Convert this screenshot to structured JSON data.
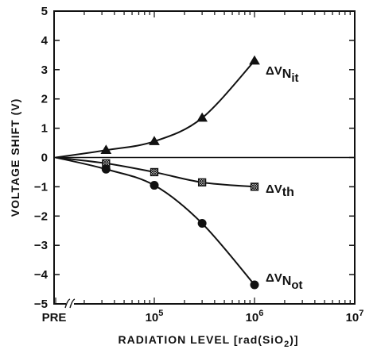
{
  "chart_data": {
    "type": "line",
    "xlabel": "RADIATION LEVEL [rad(SiO2)]",
    "ylabel": "VOLTAGE SHIFT (V)",
    "xscale": "log",
    "xlim": [
      10000,
      10000000
    ],
    "ylim": [
      -5,
      5
    ],
    "x_tick_labels": [
      "PRE",
      "10^5",
      "10^6",
      "10^7"
    ],
    "y_ticks": [
      5,
      4,
      3,
      2,
      1,
      0,
      -1,
      -2,
      -3,
      -4,
      -5
    ],
    "x_axis_break": true,
    "pre_x": "PRE",
    "series": [
      {
        "name": "ΔV_Nit",
        "label_main": "ΔV",
        "label_sub": "N",
        "label_subsub": "it",
        "marker": "triangle",
        "points": [
          {
            "x": "PRE",
            "y": 0.0
          },
          {
            "x": 33000,
            "y": 0.25
          },
          {
            "x": 100000,
            "y": 0.55
          },
          {
            "x": 300000,
            "y": 1.35
          },
          {
            "x": 1000000,
            "y": 3.3
          }
        ]
      },
      {
        "name": "ΔV_th",
        "label_main": "ΔV",
        "label_sub": "th",
        "label_subsub": "",
        "marker": "hatched-square",
        "points": [
          {
            "x": "PRE",
            "y": 0.0
          },
          {
            "x": 33000,
            "y": -0.2
          },
          {
            "x": 100000,
            "y": -0.5
          },
          {
            "x": 300000,
            "y": -0.85
          },
          {
            "x": 1000000,
            "y": -1.0
          }
        ]
      },
      {
        "name": "ΔV_Not",
        "label_main": "ΔV",
        "label_sub": "N",
        "label_subsub": "ot",
        "marker": "circle",
        "points": [
          {
            "x": "PRE",
            "y": 0.0
          },
          {
            "x": 33000,
            "y": -0.4
          },
          {
            "x": 100000,
            "y": -0.95
          },
          {
            "x": 300000,
            "y": -2.25
          },
          {
            "x": 1000000,
            "y": -4.35
          }
        ]
      }
    ]
  }
}
